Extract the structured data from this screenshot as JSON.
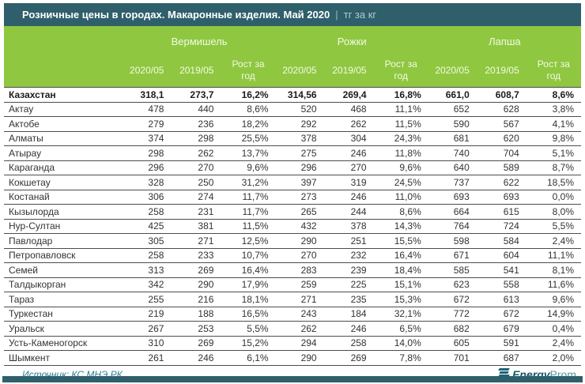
{
  "header": {
    "title": "Розничные цены в городах. Макаронные изделия. Май 2020",
    "separator": "|",
    "unit": "тг за кг"
  },
  "table": {
    "groups": [
      {
        "label": "Вермишель"
      },
      {
        "label": "Рожки"
      },
      {
        "label": "Лапша"
      }
    ],
    "sub_headers": [
      "2020/05",
      "2019/05",
      "Рост за год"
    ],
    "rows": [
      {
        "name": "Казахстан",
        "bold": true,
        "values": [
          "318,1",
          "273,7",
          "16,2%",
          "314,56",
          "269,4",
          "16,8%",
          "661,0",
          "608,7",
          "8,6%"
        ]
      },
      {
        "name": "Актау",
        "bold": false,
        "values": [
          "478",
          "440",
          "8,6%",
          "520",
          "468",
          "11,1%",
          "652",
          "628",
          "3,8%"
        ]
      },
      {
        "name": "Актобе",
        "bold": false,
        "values": [
          "279",
          "236",
          "18,2%",
          "292",
          "262",
          "11,5%",
          "590",
          "567",
          "4,1%"
        ]
      },
      {
        "name": "Алматы",
        "bold": false,
        "values": [
          "374",
          "298",
          "25,5%",
          "378",
          "304",
          "24,3%",
          "681",
          "620",
          "9,8%"
        ]
      },
      {
        "name": "Атырау",
        "bold": false,
        "values": [
          "298",
          "262",
          "13,7%",
          "275",
          "246",
          "11,8%",
          "740",
          "704",
          "5,1%"
        ]
      },
      {
        "name": "Караганда",
        "bold": false,
        "values": [
          "296",
          "270",
          "9,6%",
          "296",
          "270",
          "9,6%",
          "640",
          "589",
          "8,7%"
        ]
      },
      {
        "name": "Кокшетау",
        "bold": false,
        "values": [
          "328",
          "250",
          "31,2%",
          "397",
          "319",
          "24,5%",
          "737",
          "622",
          "18,5%"
        ]
      },
      {
        "name": "Костанай",
        "bold": false,
        "values": [
          "306",
          "274",
          "11,7%",
          "273",
          "246",
          "11,0%",
          "693",
          "693",
          "0,0%"
        ]
      },
      {
        "name": "Кызылорда",
        "bold": false,
        "values": [
          "258",
          "231",
          "11,7%",
          "265",
          "244",
          "8,6%",
          "664",
          "615",
          "8,0%"
        ]
      },
      {
        "name": "Нур-Султан",
        "bold": false,
        "values": [
          "425",
          "381",
          "11,5%",
          "432",
          "378",
          "14,3%",
          "764",
          "724",
          "5,5%"
        ]
      },
      {
        "name": "Павлодар",
        "bold": false,
        "values": [
          "305",
          "271",
          "12,5%",
          "290",
          "251",
          "15,5%",
          "598",
          "584",
          "2,4%"
        ]
      },
      {
        "name": "Петропавловск",
        "bold": false,
        "values": [
          "258",
          "233",
          "10,7%",
          "270",
          "232",
          "16,4%",
          "671",
          "604",
          "11,1%"
        ]
      },
      {
        "name": "Семей",
        "bold": false,
        "values": [
          "313",
          "269",
          "16,4%",
          "283",
          "239",
          "18,4%",
          "585",
          "541",
          "8,1%"
        ]
      },
      {
        "name": "Талдыкорган",
        "bold": false,
        "values": [
          "342",
          "290",
          "17,9%",
          "259",
          "225",
          "15,1%",
          "623",
          "558",
          "11,6%"
        ]
      },
      {
        "name": "Тараз",
        "bold": false,
        "values": [
          "255",
          "216",
          "18,1%",
          "271",
          "235",
          "15,3%",
          "672",
          "613",
          "9,6%"
        ]
      },
      {
        "name": "Туркестан",
        "bold": false,
        "values": [
          "219",
          "188",
          "16,5%",
          "243",
          "184",
          "32,1%",
          "772",
          "672",
          "14,9%"
        ]
      },
      {
        "name": "Уральск",
        "bold": false,
        "values": [
          "267",
          "253",
          "5,5%",
          "262",
          "246",
          "6,5%",
          "682",
          "679",
          "0,4%"
        ]
      },
      {
        "name": "Усть-Каменогорск",
        "bold": false,
        "values": [
          "310",
          "269",
          "15,2%",
          "294",
          "258",
          "14,0%",
          "605",
          "591",
          "2,4%"
        ]
      },
      {
        "name": "Шымкент",
        "bold": false,
        "values": [
          "261",
          "246",
          "6,1%",
          "290",
          "269",
          "7,8%",
          "701",
          "687",
          "2,0%"
        ]
      }
    ]
  },
  "footer": {
    "source": "Источник: КС МНЭ РК",
    "logo_bold": "Energy",
    "logo_light": "Prom"
  },
  "colors": {
    "teal": "#2e5f6b",
    "green": "#8fc740",
    "source_text": "#2e7d95"
  }
}
